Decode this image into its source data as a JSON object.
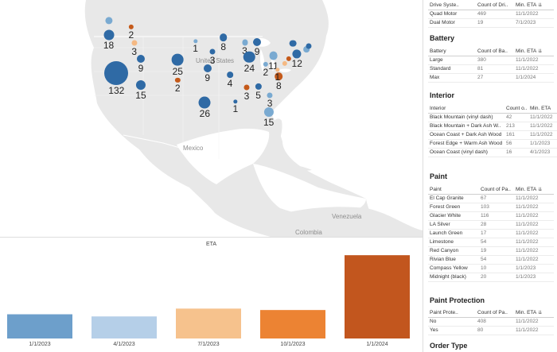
{
  "map": {
    "country_labels": [
      "United States",
      "Mexico",
      "Venezuela",
      "Colombia"
    ],
    "colors": {
      "water": "#ffffff",
      "land": "#e8e8e8",
      "border": "#ffffff"
    },
    "bubbles": [
      {
        "label": "",
        "value": 7,
        "color": "#7aaad1",
        "lat": 48.8,
        "lon": -122.8
      },
      {
        "label": "2",
        "value": 2,
        "color": "#c55a1a",
        "lat": 47.3,
        "lon": -117.0
      },
      {
        "label": "18",
        "value": 18,
        "color": "#2f6aa5",
        "lat": 45.5,
        "lon": -122.8
      },
      {
        "label": "3",
        "value": 3,
        "color": "#f5b983",
        "lat": 43.6,
        "lon": -116.2
      },
      {
        "label": "132",
        "value": 132,
        "color": "#2f6aa5",
        "lat": 36.5,
        "lon": -120.8
      },
      {
        "label": "9",
        "value": 9,
        "color": "#2f6aa5",
        "lat": 40.0,
        "lon": -114.5
      },
      {
        "label": "15",
        "value": 15,
        "color": "#2f6aa5",
        "lat": 33.8,
        "lon": -114.5
      },
      {
        "label": "25",
        "value": 25,
        "color": "#2f6aa5",
        "lat": 39.7,
        "lon": -105.0
      },
      {
        "label": "2",
        "value": 2,
        "color": "#c55a1a",
        "lat": 35.0,
        "lon": -105.0
      },
      {
        "label": "9",
        "value": 9,
        "color": "#2f6aa5",
        "lat": 37.7,
        "lon": -97.3
      },
      {
        "label": "8",
        "value": 8,
        "color": "#2f6aa5",
        "lat": 44.9,
        "lon": -93.2
      },
      {
        "label": "1",
        "value": 1,
        "color": "#7aaad1",
        "lat": 44.0,
        "lon": -100.4
      },
      {
        "label": "3",
        "value": 3,
        "color": "#2f6aa5",
        "lat": 41.5,
        "lon": -96.0
      },
      {
        "label": "3",
        "value": 3,
        "color": "#7aaad1",
        "lat": 43.7,
        "lon": -87.7
      },
      {
        "label": "4",
        "value": 4,
        "color": "#2f6aa5",
        "lat": 36.2,
        "lon": -91.5
      },
      {
        "label": "26",
        "value": 26,
        "color": "#2f6aa5",
        "lat": 29.8,
        "lon": -98.0
      },
      {
        "label": "24",
        "value": 24,
        "color": "#2f6aa5",
        "lat": 40.3,
        "lon": -86.5
      },
      {
        "label": "9",
        "value": 9,
        "color": "#2f6aa5",
        "lat": 43.8,
        "lon": -84.5
      },
      {
        "label": "2",
        "value": 2,
        "color": "#7aaad1",
        "lat": 38.6,
        "lon": -82.3
      },
      {
        "label": "11",
        "value": 11,
        "color": "#7aaad1",
        "lat": 40.6,
        "lon": -80.3
      },
      {
        "label": "1",
        "value": 1,
        "color": "#2f6aa5",
        "lat": 30.0,
        "lon": -90.1
      },
      {
        "label": "3",
        "value": 3,
        "color": "#c55a1a",
        "lat": 33.2,
        "lon": -87.2
      },
      {
        "label": "5",
        "value": 5,
        "color": "#2f6aa5",
        "lat": 33.5,
        "lon": -84.2
      },
      {
        "label": "8",
        "value": 8,
        "color": "#c55a1a",
        "lat": 35.8,
        "lon": -78.9
      },
      {
        "label": "1",
        "value": 1,
        "color": "#f5b983",
        "lat": 37.4,
        "lon": -79.2
      },
      {
        "label": "3",
        "value": 3,
        "color": "#7aaad1",
        "lat": 31.5,
        "lon": -81.2
      },
      {
        "label": "15",
        "value": 15,
        "color": "#7aaad1",
        "lat": 27.6,
        "lon": -81.5
      },
      {
        "label": "12",
        "value": 12,
        "color": "#2f6aa5",
        "lat": 41.1,
        "lon": -74.2
      },
      {
        "label": "",
        "value": 6,
        "color": "#2f6aa5",
        "lat": 43.5,
        "lon": -75.2
      },
      {
        "label": "",
        "value": 4,
        "color": "#7aaad1",
        "lat": 42.1,
        "lon": -71.7
      },
      {
        "label": "",
        "value": 3,
        "color": "#2f6aa5",
        "lat": 42.8,
        "lon": -71.2
      },
      {
        "label": "",
        "value": 2,
        "color": "#c55a1a",
        "lat": 39.9,
        "lon": -76.3
      },
      {
        "label": "",
        "value": 2,
        "color": "#f5b983",
        "lat": 38.8,
        "lon": -77.3
      }
    ]
  },
  "chart_data": {
    "type": "bar",
    "title": "ETA",
    "categories": [
      "1/1/2023",
      "4/1/2023",
      "7/1/2023",
      "10/1/2023",
      "1/1/2024"
    ],
    "values": [
      34,
      31,
      42,
      40,
      117
    ],
    "colors": [
      "#6d9fcb",
      "#b5cfe8",
      "#f6c28d",
      "#ec8333",
      "#c2561e"
    ],
    "ylim": [
      0,
      125
    ],
    "grid": false,
    "legend": "none"
  },
  "panel": {
    "drive": {
      "columns": [
        "Drive Syste..",
        "Count of Dri..",
        "Min. ETA"
      ],
      "rows": [
        [
          "Quad Motor",
          "469",
          "11/1/2022"
        ],
        [
          "Dual Motor",
          "19",
          "7/1/2023"
        ]
      ]
    },
    "battery": {
      "title": "Battery",
      "columns": [
        "Battery",
        "Count of Ba..",
        "Min. ETA"
      ],
      "rows": [
        [
          "Large",
          "380",
          "11/1/2022"
        ],
        [
          "Standard",
          "81",
          "11/1/2022"
        ],
        [
          "Max",
          "27",
          "1/1/2024"
        ]
      ]
    },
    "interior": {
      "title": "Interior",
      "columns": [
        "Interior",
        "Count o..",
        "Min. ETA"
      ],
      "rows": [
        [
          "Black Mountain (vinyl dash)",
          "42",
          "11/1/2022"
        ],
        [
          "Black Mountain + Dark Ash W..",
          "213",
          "11/1/2022"
        ],
        [
          "Ocean Coast + Dark Ash Wood",
          "161",
          "11/1/2022"
        ],
        [
          "Forest Edge + Warm Ash Wood",
          "56",
          "1/1/2023"
        ],
        [
          "Ocean Coast (vinyl dash)",
          "16",
          "4/1/2023"
        ]
      ]
    },
    "paint": {
      "title": "Paint",
      "columns": [
        "Paint",
        "Count of Pa..",
        "Min. ETA"
      ],
      "rows": [
        [
          "El Cap Granite",
          "67",
          "11/1/2022"
        ],
        [
          "Forest Green",
          "103",
          "11/1/2022"
        ],
        [
          "Glacier White",
          "116",
          "11/1/2022"
        ],
        [
          "LA Silver",
          "28",
          "11/1/2022"
        ],
        [
          "Launch Green",
          "17",
          "11/1/2022"
        ],
        [
          "Limestone",
          "54",
          "11/1/2022"
        ],
        [
          "Red Canyon",
          "19",
          "11/1/2022"
        ],
        [
          "Rivian Blue",
          "54",
          "11/1/2022"
        ],
        [
          "Compass Yellow",
          "10",
          "1/1/2023"
        ],
        [
          "Midnight (black)",
          "20",
          "1/1/2023"
        ]
      ]
    },
    "protection": {
      "title": "Paint Protection",
      "columns": [
        "Paint Prote..",
        "Count of Pa..",
        "Min. ETA"
      ],
      "rows": [
        [
          "No",
          "408",
          "11/1/2022"
        ],
        [
          "Yes",
          "80",
          "11/1/2022"
        ]
      ]
    },
    "order": {
      "title": "Order Type"
    },
    "sort_icon": "sort-descending-icon"
  }
}
